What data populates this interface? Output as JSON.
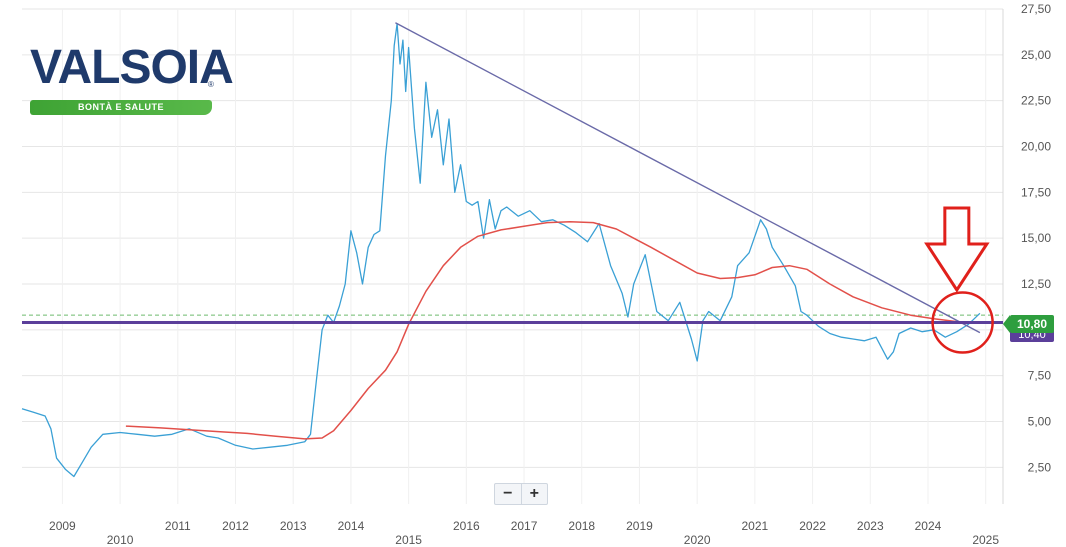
{
  "logo": {
    "brand": "VALSOIA",
    "tagline": "BONTÀ E SALUTE",
    "registered": "®"
  },
  "zoom": {
    "minus": "−",
    "plus": "+"
  },
  "price_badge": "10,80",
  "level_badge": "10,40",
  "colors": {
    "price_line": "#3aa0d5",
    "moving_average": "#e2504a",
    "trendline": "#6a6aa8",
    "support_line": "#5b3f9a",
    "dashed_line": "#6dbb6d",
    "annotation": "#e0201b",
    "grid": "#e6e6e6"
  },
  "chart_data": {
    "type": "line",
    "title": "",
    "xlabel": "",
    "ylabel": "",
    "ylim": [
      0.5,
      27.5
    ],
    "xlim": [
      2008.6,
      2025.6
    ],
    "y_ticks": [
      "2,50",
      "5,00",
      "7,50",
      "10,00",
      "12,50",
      "15,00",
      "17,50",
      "20,00",
      "22,50",
      "25,00",
      "27,50"
    ],
    "y_tick_values": [
      2.5,
      5,
      7.5,
      10,
      12.5,
      15,
      17.5,
      20,
      22.5,
      25,
      27.5
    ],
    "x_ticks_minor": [
      {
        "label": "2009",
        "x": 2009.3
      },
      {
        "label": "2011",
        "x": 2011.3
      },
      {
        "label": "2012",
        "x": 2012.3
      },
      {
        "label": "2013",
        "x": 2013.3
      },
      {
        "label": "2014",
        "x": 2014.3
      },
      {
        "label": "2016",
        "x": 2016.3
      },
      {
        "label": "2017",
        "x": 2017.3
      },
      {
        "label": "2018",
        "x": 2018.3
      },
      {
        "label": "2019",
        "x": 2019.3
      },
      {
        "label": "2021",
        "x": 2021.3
      },
      {
        "label": "2022",
        "x": 2022.3
      },
      {
        "label": "2023",
        "x": 2023.3
      },
      {
        "label": "2024",
        "x": 2024.3
      }
    ],
    "x_ticks_major": [
      {
        "label": "2010",
        "x": 2010.3
      },
      {
        "label": "2015",
        "x": 2015.3
      },
      {
        "label": "2020",
        "x": 2020.3
      },
      {
        "label": "2025",
        "x": 2025.3
      }
    ],
    "grid": true,
    "series": [
      {
        "key": "price",
        "x": [
          2008.6,
          2008.8,
          2009.0,
          2009.1,
          2009.2,
          2009.35,
          2009.5,
          2009.65,
          2009.8,
          2010.0,
          2010.3,
          2010.6,
          2010.9,
          2011.2,
          2011.5,
          2011.8,
          2012.0,
          2012.3,
          2012.6,
          2012.9,
          2013.2,
          2013.5,
          2013.6,
          2013.7,
          2013.8,
          2013.9,
          2014.0,
          2014.1,
          2014.2,
          2014.3,
          2014.4,
          2014.5,
          2014.6,
          2014.7,
          2014.8,
          2014.9,
          2015.0,
          2015.05,
          2015.1,
          2015.15,
          2015.2,
          2015.25,
          2015.3,
          2015.4,
          2015.5,
          2015.6,
          2015.7,
          2015.8,
          2015.9,
          2016.0,
          2016.1,
          2016.2,
          2016.3,
          2016.4,
          2016.5,
          2016.6,
          2016.7,
          2016.8,
          2016.9,
          2017.0,
          2017.2,
          2017.4,
          2017.6,
          2017.8,
          2018.0,
          2018.2,
          2018.4,
          2018.6,
          2018.8,
          2019.0,
          2019.1,
          2019.2,
          2019.4,
          2019.6,
          2019.8,
          2020.0,
          2020.2,
          2020.3,
          2020.4,
          2020.5,
          2020.7,
          2020.9,
          2021.0,
          2021.2,
          2021.4,
          2021.5,
          2021.6,
          2021.8,
          2022.0,
          2022.1,
          2022.2,
          2022.4,
          2022.6,
          2022.8,
          2023.0,
          2023.2,
          2023.4,
          2023.5,
          2023.6,
          2023.7,
          2023.8,
          2024.0,
          2024.2,
          2024.4,
          2024.6,
          2024.8,
          2025.0,
          2025.2
        ],
        "values": [
          5.7,
          5.5,
          5.3,
          4.6,
          3.0,
          2.4,
          2.0,
          2.8,
          3.6,
          4.3,
          4.4,
          4.3,
          4.2,
          4.3,
          4.6,
          4.2,
          4.1,
          3.7,
          3.5,
          3.6,
          3.7,
          3.9,
          4.3,
          7.2,
          10.0,
          10.8,
          10.4,
          11.3,
          12.5,
          15.4,
          14.2,
          12.5,
          14.5,
          15.2,
          15.4,
          19.5,
          22.5,
          25.5,
          26.7,
          24.5,
          25.8,
          23.0,
          25.4,
          21.0,
          18.0,
          23.5,
          20.5,
          22.0,
          19.0,
          21.5,
          17.5,
          19.0,
          17.0,
          16.8,
          17.0,
          15.0,
          17.1,
          15.5,
          16.5,
          16.7,
          16.2,
          16.5,
          15.9,
          16.0,
          15.7,
          15.3,
          14.8,
          15.8,
          13.5,
          12.0,
          10.7,
          12.5,
          14.1,
          11.0,
          10.5,
          11.5,
          9.5,
          8.3,
          10.5,
          11.0,
          10.5,
          11.8,
          13.5,
          14.2,
          16.0,
          15.5,
          14.5,
          13.5,
          12.4,
          11.0,
          10.8,
          10.2,
          9.8,
          9.6,
          9.5,
          9.4,
          9.6,
          9.0,
          8.4,
          8.8,
          9.8,
          10.1,
          9.9,
          10.0,
          9.6,
          9.9,
          10.3,
          10.9
        ]
      },
      {
        "key": "moving_average",
        "x": [
          2010.4,
          2011.0,
          2011.5,
          2012.0,
          2012.5,
          2013.0,
          2013.5,
          2013.8,
          2014.0,
          2014.3,
          2014.6,
          2014.9,
          2015.1,
          2015.3,
          2015.6,
          2015.9,
          2016.2,
          2016.5,
          2016.9,
          2017.3,
          2017.7,
          2018.1,
          2018.5,
          2018.9,
          2019.2,
          2019.5,
          2019.9,
          2020.3,
          2020.7,
          2021.0,
          2021.3,
          2021.6,
          2021.9,
          2022.2,
          2022.6,
          2023.0,
          2023.5,
          2024.0,
          2024.4,
          2024.8,
          2025.1
        ],
        "values": [
          4.75,
          4.65,
          4.55,
          4.45,
          4.35,
          4.2,
          4.05,
          4.1,
          4.5,
          5.6,
          6.8,
          7.8,
          8.8,
          10.3,
          12.1,
          13.5,
          14.5,
          15.1,
          15.45,
          15.65,
          15.85,
          15.9,
          15.85,
          15.5,
          15.0,
          14.5,
          13.8,
          13.1,
          12.8,
          12.85,
          13.0,
          13.4,
          13.5,
          13.3,
          12.5,
          11.8,
          11.2,
          10.8,
          10.6,
          10.45,
          10.4
        ]
      },
      {
        "key": "trendline",
        "x": [
          2015.07,
          2025.2
        ],
        "values": [
          26.75,
          9.85
        ]
      }
    ],
    "annotations": {
      "support_level": 10.4,
      "dashed_level": 10.8,
      "circle_center": {
        "x": 2024.9,
        "y": 10.4
      },
      "arrow_x": 2024.8
    }
  }
}
